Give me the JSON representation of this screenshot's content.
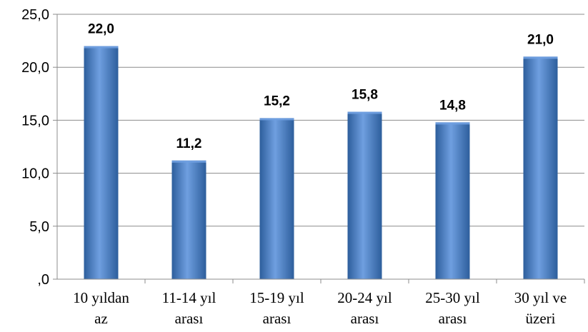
{
  "chart_data": {
    "type": "bar",
    "categories": [
      [
        "10 yıldan",
        "az"
      ],
      [
        "11-14 yıl",
        "arası"
      ],
      [
        "15-19 yıl",
        "arası"
      ],
      [
        "20-24 yıl",
        "arası"
      ],
      [
        "25-30 yıl",
        "arası"
      ],
      [
        "30 yıl ve",
        "üzeri"
      ]
    ],
    "values": [
      22.0,
      11.2,
      15.2,
      15.8,
      14.8,
      21.0
    ],
    "value_labels": [
      "22,0",
      "11,2",
      "15,2",
      "15,8",
      "14,8",
      "21,0"
    ],
    "yticks": [
      0,
      5,
      10,
      15,
      20,
      25
    ],
    "ytick_labels": [
      ",0",
      "5,0",
      "10,0",
      "15,0",
      "20,0",
      "25,0"
    ],
    "ylim": [
      0,
      25
    ],
    "grid": true,
    "legend": "none",
    "bar_color": "#4a7fc6",
    "bar_color_light": "#6f9fe0",
    "bar_color_dark": "#2d5e9c"
  }
}
